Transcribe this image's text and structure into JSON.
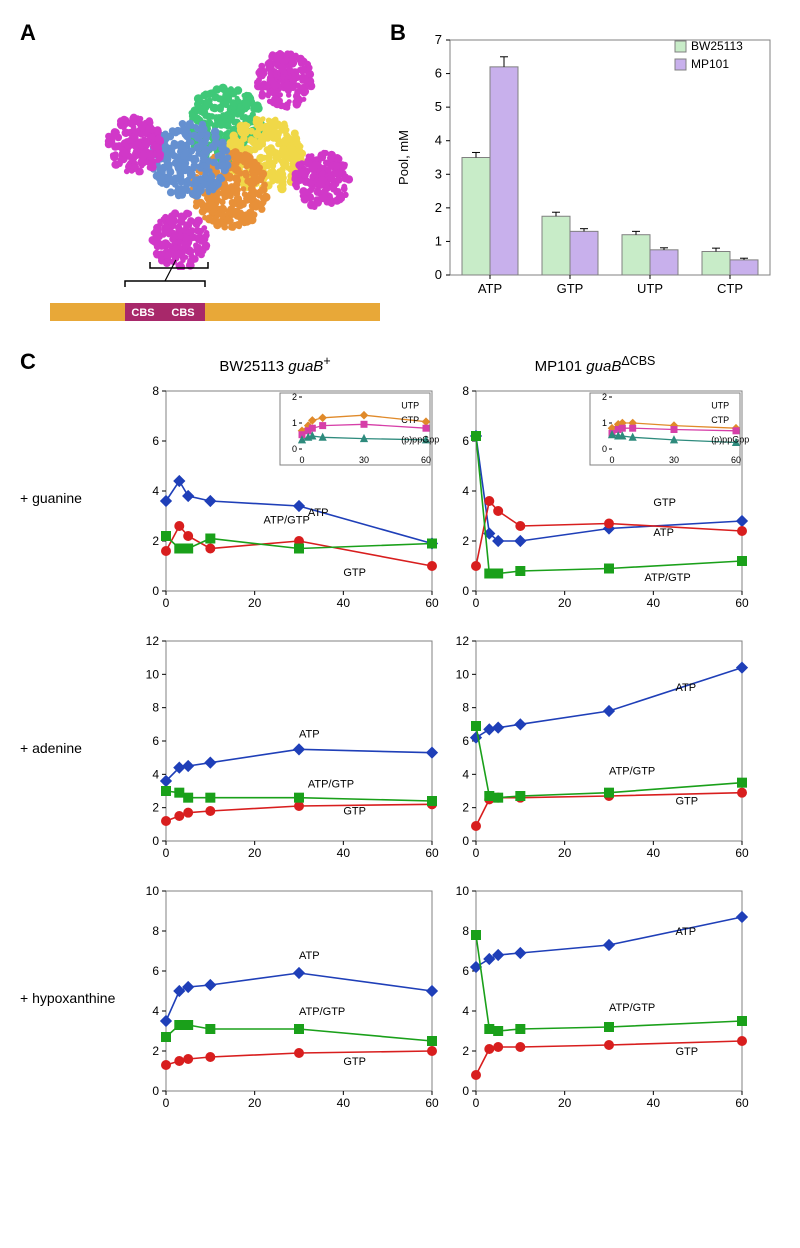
{
  "panelLabels": {
    "A": "A",
    "B": "B",
    "C": "C"
  },
  "colors": {
    "atp": "#1f3fb8",
    "gtp": "#d81e1e",
    "ratio": "#1aa01a",
    "utp": "#e08a2a",
    "ctp": "#d63fa8",
    "ppgpp": "#2e8b7d",
    "axis": "#808080",
    "grid": "#e0e0e0",
    "barBW": "#c8ecc8",
    "barMP": "#c8b0ec",
    "barBorder": "#808080",
    "domainMain": "#e8a838",
    "domainCBS": "#a8286a",
    "cbsText": "#ffffff",
    "proteinMagenta": "#d138c8",
    "proteinBlue": "#6590d0",
    "proteinGreen": "#3fc878",
    "proteinYellow": "#f0d848",
    "proteinOrange": "#e89038"
  },
  "panelA": {
    "cbsLabel": "CBS"
  },
  "panelB": {
    "ylabel": "Pool, mM",
    "ylim": [
      0,
      7
    ],
    "ytick_step": 1,
    "categories": [
      "ATP",
      "GTP",
      "UTP",
      "CTP"
    ],
    "legend": [
      "BW25113",
      "MP101"
    ],
    "series": {
      "BW25113": [
        3.5,
        1.75,
        1.2,
        0.7
      ],
      "MP101": [
        6.2,
        1.3,
        0.75,
        0.45
      ]
    },
    "errors": {
      "BW25113": [
        0.15,
        0.12,
        0.1,
        0.1
      ],
      "MP101": [
        0.3,
        0.08,
        0.06,
        0.05
      ]
    },
    "bar_width": 0.35,
    "label_fontsize": 13
  },
  "panelC": {
    "columns": [
      {
        "title_html": "BW25113 <i>guaB</i><sup>+</sup>"
      },
      {
        "title_html": "MP101 <i>guaB</i><sup>ΔCBS</sup>"
      }
    ],
    "rows": [
      {
        "label": "+ guanine"
      },
      {
        "label": "+ adenine"
      },
      {
        "label": "+ hypoxanthine"
      }
    ],
    "xlim": [
      0,
      60
    ],
    "xticks": [
      0,
      20,
      40,
      60
    ],
    "series_labels": {
      "atp": "ATP",
      "gtp": "GTP",
      "ratio": "ATP/GTP",
      "utp": "UTP",
      "ctp": "CTP",
      "ppgpp": "(p)ppGpp"
    },
    "xpoints": [
      0,
      3,
      5,
      10,
      30,
      60
    ],
    "charts": [
      [
        {
          "ylim": [
            0,
            8
          ],
          "yticks": [
            0,
            2,
            4,
            6,
            8
          ],
          "atp": [
            3.6,
            4.4,
            3.8,
            3.6,
            3.4,
            1.9
          ],
          "gtp": [
            1.6,
            2.6,
            2.2,
            1.7,
            2.0,
            1.0
          ],
          "ratio": [
            2.2,
            1.7,
            1.7,
            2.1,
            1.7,
            1.9
          ],
          "inset": {
            "ylim": [
              0,
              2
            ],
            "yticks": [
              0,
              1,
              2
            ],
            "utp": [
              0.7,
              0.9,
              1.1,
              1.2,
              1.3,
              1.05
            ],
            "ctp": [
              0.55,
              0.7,
              0.8,
              0.9,
              0.95,
              0.8
            ],
            "ppgpp": [
              0.35,
              0.45,
              0.5,
              0.45,
              0.4,
              0.35
            ]
          }
        },
        {
          "ylim": [
            0,
            8
          ],
          "yticks": [
            0,
            2,
            4,
            6,
            8
          ],
          "atp": [
            6.2,
            2.3,
            2.0,
            2.0,
            2.5,
            2.8
          ],
          "gtp": [
            1.0,
            3.6,
            3.2,
            2.6,
            2.7,
            2.4
          ],
          "ratio": [
            6.2,
            0.7,
            0.7,
            0.8,
            0.9,
            1.2
          ],
          "inset": {
            "ylim": [
              0,
              2
            ],
            "yticks": [
              0,
              1,
              2
            ],
            "utp": [
              0.8,
              0.95,
              1.0,
              1.0,
              0.9,
              0.8
            ],
            "ctp": [
              0.6,
              0.75,
              0.8,
              0.8,
              0.75,
              0.7
            ],
            "ppgpp": [
              0.55,
              0.5,
              0.5,
              0.45,
              0.35,
              0.25
            ]
          }
        }
      ],
      [
        {
          "ylim": [
            0,
            12
          ],
          "yticks": [
            0,
            2,
            4,
            6,
            8,
            10,
            12
          ],
          "atp": [
            3.6,
            4.4,
            4.5,
            4.7,
            5.5,
            5.3
          ],
          "gtp": [
            1.2,
            1.5,
            1.7,
            1.8,
            2.1,
            2.2
          ],
          "ratio": [
            3.0,
            2.9,
            2.6,
            2.6,
            2.6,
            2.4
          ]
        },
        {
          "ylim": [
            0,
            12
          ],
          "yticks": [
            0,
            2,
            4,
            6,
            8,
            10,
            12
          ],
          "atp": [
            6.2,
            6.7,
            6.8,
            7.0,
            7.8,
            10.4
          ],
          "gtp": [
            0.9,
            2.5,
            2.6,
            2.6,
            2.7,
            2.9
          ],
          "ratio": [
            6.9,
            2.7,
            2.6,
            2.7,
            2.9,
            3.5
          ]
        }
      ],
      [
        {
          "ylim": [
            0,
            10
          ],
          "yticks": [
            0,
            2,
            4,
            6,
            8,
            10
          ],
          "atp": [
            3.5,
            5.0,
            5.2,
            5.3,
            5.9,
            5.0
          ],
          "gtp": [
            1.3,
            1.5,
            1.6,
            1.7,
            1.9,
            2.0
          ],
          "ratio": [
            2.7,
            3.3,
            3.3,
            3.1,
            3.1,
            2.5
          ]
        },
        {
          "ylim": [
            0,
            10
          ],
          "yticks": [
            0,
            2,
            4,
            6,
            8,
            10
          ],
          "atp": [
            6.2,
            6.6,
            6.8,
            6.9,
            7.3,
            8.7
          ],
          "gtp": [
            0.8,
            2.1,
            2.2,
            2.2,
            2.3,
            2.5
          ],
          "ratio": [
            7.8,
            3.1,
            3.0,
            3.1,
            3.2,
            3.5
          ]
        }
      ]
    ],
    "label_fontsize": 12
  }
}
